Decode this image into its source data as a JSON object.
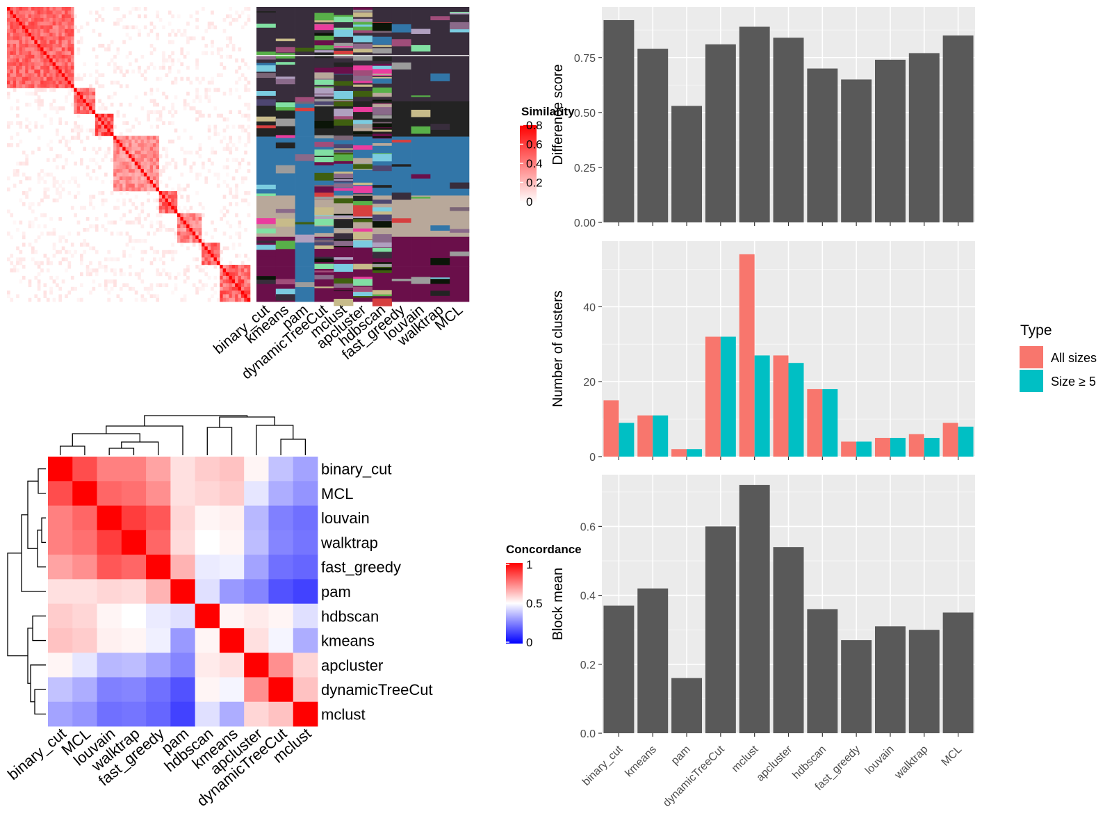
{
  "methods_main": [
    "binary_cut",
    "kmeans",
    "pam",
    "dynamicTreeCut",
    "mclust",
    "apcluster",
    "hdbscan",
    "fast_greedy",
    "louvain",
    "walktrap",
    "MCL"
  ],
  "heatmap_sim": {
    "legend_title": "Similarity",
    "legend_ticks": [
      "0",
      "0.2",
      "0.4",
      "0.6",
      "0.8"
    ],
    "colors": {
      "low": "#ffffff",
      "high": "#ff0000"
    }
  },
  "concordance": {
    "legend_title": "Concordance",
    "legend_ticks": [
      "0",
      "0.5",
      "1"
    ],
    "colors": {
      "low": "#0000ff",
      "mid": "#ffffff",
      "high": "#ff0000"
    },
    "methods": [
      "binary_cut",
      "MCL",
      "louvain",
      "walktrap",
      "fast_greedy",
      "pam",
      "hdbscan",
      "kmeans",
      "apcluster",
      "dynamicTreeCut",
      "mclust"
    ]
  },
  "chart_data": [
    {
      "type": "bar",
      "ylabel": "Difference score",
      "categories": [
        "binary_cut",
        "kmeans",
        "pam",
        "dynamicTreeCut",
        "mclust",
        "apcluster",
        "hdbscan",
        "fast_greedy",
        "louvain",
        "walktrap",
        "MCL"
      ],
      "values": [
        0.92,
        0.79,
        0.53,
        0.81,
        0.89,
        0.84,
        0.7,
        0.65,
        0.74,
        0.77,
        0.85
      ],
      "yticks": [
        "0.00",
        "0.25",
        "0.50",
        "0.75"
      ],
      "ylim": [
        0,
        0.98
      ],
      "color": "#595959"
    },
    {
      "type": "bar",
      "ylabel": "Number of clusters",
      "categories": [
        "binary_cut",
        "kmeans",
        "pam",
        "dynamicTreeCut",
        "mclust",
        "apcluster",
        "hdbscan",
        "fast_greedy",
        "louvain",
        "walktrap",
        "MCL"
      ],
      "legend_title": "Type",
      "legend_position": "right",
      "series": [
        {
          "name": "All sizes",
          "color": "#F8766D",
          "values": [
            15,
            11,
            2,
            32,
            54,
            27,
            18,
            4,
            5,
            6,
            9
          ]
        },
        {
          "name": "Size ≥ 5",
          "color": "#00BFC4",
          "values": [
            9,
            11,
            2,
            32,
            27,
            25,
            18,
            4,
            5,
            5,
            8
          ]
        }
      ],
      "yticks": [
        "0",
        "20",
        "40"
      ],
      "ylim": [
        0,
        57.5
      ]
    },
    {
      "type": "bar",
      "ylabel": "Block mean",
      "categories": [
        "binary_cut",
        "kmeans",
        "pam",
        "dynamicTreeCut",
        "mclust",
        "apcluster",
        "hdbscan",
        "fast_greedy",
        "louvain",
        "walktrap",
        "MCL"
      ],
      "values": [
        0.37,
        0.42,
        0.16,
        0.6,
        0.72,
        0.54,
        0.36,
        0.27,
        0.31,
        0.3,
        0.35
      ],
      "yticks": [
        "0.0",
        "0.2",
        "0.4",
        "0.6"
      ],
      "ylim": [
        0,
        0.75
      ],
      "color": "#595959"
    },
    {
      "type": "heatmap",
      "legend_title": "Concordance",
      "rows": [
        "binary_cut",
        "MCL",
        "louvain",
        "walktrap",
        "fast_greedy",
        "pam",
        "hdbscan",
        "kmeans",
        "apcluster",
        "dynamicTreeCut",
        "mclust"
      ],
      "columns": [
        "binary_cut",
        "MCL",
        "louvain",
        "walktrap",
        "fast_greedy",
        "pam",
        "hdbscan",
        "kmeans",
        "apcluster",
        "dynamicTreeCut",
        "mclust"
      ],
      "values": [
        [
          1.0,
          0.85,
          0.75,
          0.75,
          0.68,
          0.56,
          0.6,
          0.62,
          0.52,
          0.38,
          0.32
        ],
        [
          0.85,
          1.0,
          0.8,
          0.78,
          0.72,
          0.56,
          0.58,
          0.6,
          0.45,
          0.34,
          0.29
        ],
        [
          0.75,
          0.8,
          1.0,
          0.88,
          0.83,
          0.58,
          0.52,
          0.53,
          0.36,
          0.25,
          0.22
        ],
        [
          0.75,
          0.78,
          0.88,
          1.0,
          0.8,
          0.57,
          0.5,
          0.52,
          0.37,
          0.26,
          0.23
        ],
        [
          0.68,
          0.72,
          0.83,
          0.8,
          1.0,
          0.65,
          0.46,
          0.47,
          0.32,
          0.22,
          0.2
        ],
        [
          0.56,
          0.56,
          0.58,
          0.57,
          0.65,
          1.0,
          0.44,
          0.3,
          0.26,
          0.16,
          0.13
        ],
        [
          0.6,
          0.58,
          0.52,
          0.5,
          0.46,
          0.44,
          1.0,
          0.52,
          0.54,
          0.52,
          0.44
        ],
        [
          0.62,
          0.6,
          0.53,
          0.52,
          0.47,
          0.3,
          0.52,
          1.0,
          0.56,
          0.48,
          0.34
        ],
        [
          0.52,
          0.45,
          0.36,
          0.37,
          0.32,
          0.26,
          0.54,
          0.56,
          1.0,
          0.72,
          0.58
        ],
        [
          0.38,
          0.34,
          0.25,
          0.26,
          0.22,
          0.16,
          0.52,
          0.48,
          0.72,
          1.0,
          0.62
        ],
        [
          0.32,
          0.29,
          0.22,
          0.23,
          0.2,
          0.13,
          0.44,
          0.34,
          0.58,
          0.62,
          1.0
        ]
      ]
    }
  ]
}
